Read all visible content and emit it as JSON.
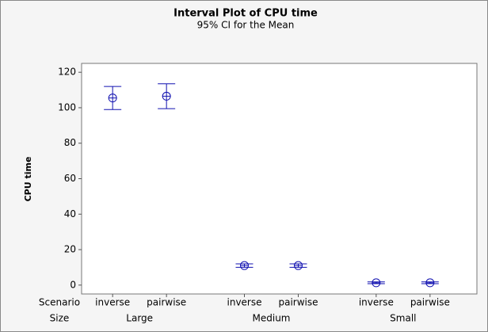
{
  "chart_data": {
    "type": "interval",
    "title": "Interval Plot of CPU time",
    "subtitle": "95% CI for the Mean",
    "y_label": "CPU time",
    "x_row_labels": [
      "Scenario",
      "Size"
    ],
    "groups": [
      "Large",
      "Medium",
      "Small"
    ],
    "categories": [
      "inverse",
      "pairwise",
      "inverse",
      "pairwise",
      "inverse",
      "pairwise"
    ],
    "values": [
      105.5,
      106.5,
      11,
      11,
      1.3,
      1.3
    ],
    "errors": [
      6.5,
      7,
      1,
      1,
      0.5,
      0.5
    ],
    "color": "#1010b0",
    "ylim": [
      -5,
      125
    ],
    "yticks": [
      0,
      20,
      40,
      60,
      80,
      100,
      120
    ]
  }
}
